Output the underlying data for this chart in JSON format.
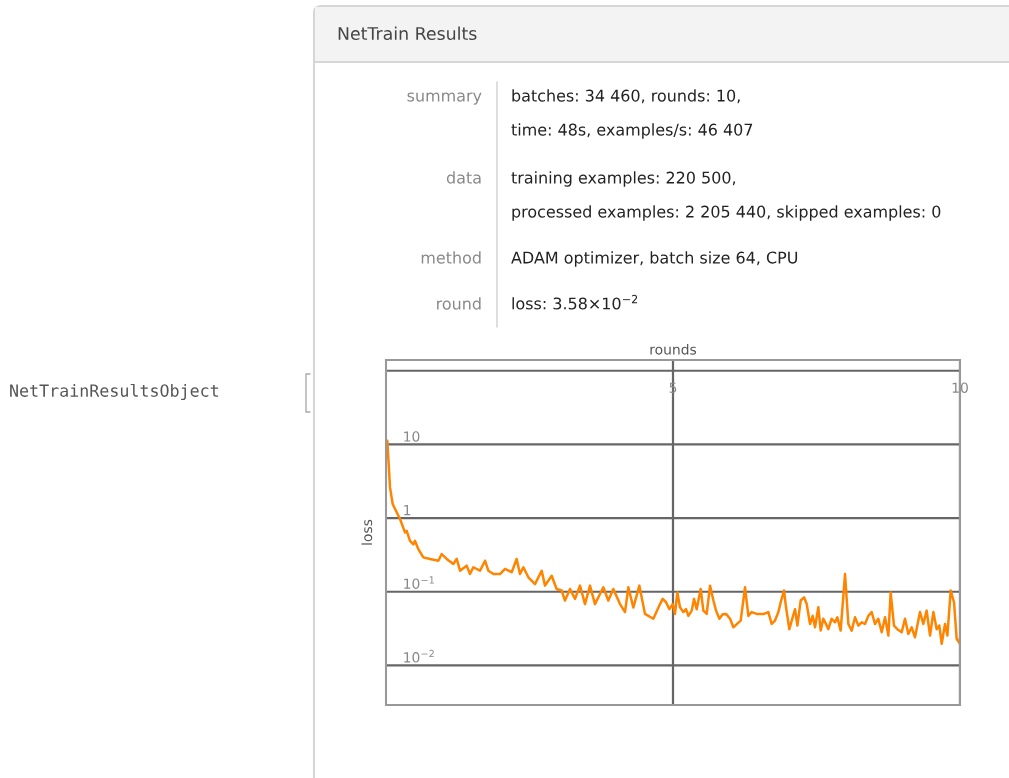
{
  "chart_data": {
    "type": "line",
    "title": "NetTrain Results",
    "xlabel": "rounds",
    "ylabel": "loss",
    "annotations": [
      "NetTrainResultsObject",
      "summary",
      "batches: 34 460, rounds: 10,",
      "time: 48s, examples/s: 46 407",
      "data",
      "training examples: 220 500,",
      "processed examples: 2 205 440, skipped examples: 0",
      "method",
      "ADAM optimizer, batch size 64, CPU",
      "round",
      "loss: 3.58×10$^{−2}$"
    ],
    "xlim": [
      0,
      10
    ],
    "xticks": [
      5,
      10
    ],
    "ylim": [
      0.0029,
      140
    ],
    "log": true,
    "yticks": [
      {
        "value": 100,
        "label": null
      },
      10,
      1,
      {
        "value": 0.1,
        "label": "10$^{−1}$"
      },
      {
        "value": 0.01,
        "label": "10$^{−2}$"
      }
    ],
    "grid": true,
    "series": [
      {
        "color": "#ff8400",
        "x": [
          0.023,
          0.07,
          0.116,
          0.244,
          0.331,
          0.36,
          0.418,
          0.476,
          0.505,
          0.563,
          0.65,
          0.767,
          0.912,
          0.97,
          1.057,
          1.173,
          1.231,
          1.29,
          1.405,
          1.463,
          1.521,
          1.638,
          1.725,
          1.783,
          1.87,
          1.986,
          2.073,
          2.19,
          2.276,
          2.334,
          2.393,
          2.48,
          2.596,
          2.712,
          2.77,
          2.886,
          2.973,
          3.06,
          3.118,
          3.206,
          3.293,
          3.38,
          3.467,
          3.554,
          3.641,
          3.786,
          3.873,
          3.96,
          4.077,
          4.164,
          4.222,
          4.309,
          4.414,
          4.512,
          4.657,
          4.774,
          4.82,
          4.879,
          4.937,
          4.995,
          5.035,
          5.076,
          5.122,
          5.18,
          5.227,
          5.268,
          5.326,
          5.366,
          5.413,
          5.482,
          5.529,
          5.587,
          5.645,
          5.703,
          5.75,
          5.808,
          5.866,
          5.924,
          5.994,
          6.052,
          6.121,
          6.179,
          6.255,
          6.313,
          6.371,
          6.458,
          6.516,
          6.586,
          6.661,
          6.719,
          6.777,
          6.836,
          6.876,
          6.934,
          6.969,
          7.027,
          7.085,
          7.126,
          7.167,
          7.225,
          7.283,
          7.329,
          7.387,
          7.434,
          7.474,
          7.532,
          7.573,
          7.619,
          7.666,
          7.706,
          7.764,
          7.823,
          7.863,
          7.921,
          7.997,
          8.055,
          8.113,
          8.171,
          8.229,
          8.287,
          8.345,
          8.403,
          8.461,
          8.519,
          8.577,
          8.636,
          8.694,
          8.752,
          8.792,
          8.85,
          8.908,
          8.984,
          9.042,
          9.1,
          9.158,
          9.216,
          9.303,
          9.361,
          9.419,
          9.478,
          9.536,
          9.594,
          9.64,
          9.681,
          9.739,
          9.78,
          9.838,
          9.896,
          9.942,
          9.998,
          10.0
        ],
        "values": [
          11.2,
          2.61,
          1.55,
          0.97,
          0.64,
          0.67,
          0.49,
          0.44,
          0.49,
          0.38,
          0.293,
          0.279,
          0.264,
          0.325,
          0.279,
          0.238,
          0.279,
          0.193,
          0.226,
          0.174,
          0.215,
          0.193,
          0.264,
          0.193,
          0.174,
          0.174,
          0.204,
          0.184,
          0.279,
          0.174,
          0.215,
          0.157,
          0.127,
          0.193,
          0.121,
          0.165,
          0.109,
          0.104,
          0.076,
          0.109,
          0.08,
          0.121,
          0.068,
          0.121,
          0.068,
          0.115,
          0.076,
          0.109,
          0.068,
          0.053,
          0.115,
          0.061,
          0.121,
          0.05,
          0.043,
          0.068,
          0.08,
          0.072,
          0.058,
          0.068,
          0.05,
          0.098,
          0.0615,
          0.053,
          0.058,
          0.047,
          0.0554,
          0.08,
          0.058,
          0.109,
          0.0554,
          0.05,
          0.121,
          0.0766,
          0.0554,
          0.043,
          0.0495,
          0.05,
          0.043,
          0.0329,
          0.0369,
          0.0406,
          0.115,
          0.047,
          0.053,
          0.05,
          0.05,
          0.05,
          0.053,
          0.0365,
          0.0406,
          0.053,
          0.072,
          0.104,
          0.0615,
          0.031,
          0.045,
          0.058,
          0.0347,
          0.076,
          0.084,
          0.068,
          0.0365,
          0.047,
          0.0329,
          0.0615,
          0.0297,
          0.043,
          0.0365,
          0.031,
          0.043,
          0.0385,
          0.045,
          0.0297,
          0.174,
          0.0365,
          0.0297,
          0.045,
          0.0347,
          0.0385,
          0.0365,
          0.047,
          0.053,
          0.0365,
          0.043,
          0.0282,
          0.045,
          0.0254,
          0.098,
          0.0347,
          0.031,
          0.0282,
          0.043,
          0.0267,
          0.0329,
          0.0241,
          0.053,
          0.0365,
          0.0554,
          0.0254,
          0.053,
          0.031,
          0.0347,
          0.0196,
          0.0365,
          0.0254,
          0.104,
          0.072,
          0.0229,
          0.0196,
          0.0241
        ]
      }
    ]
  }
}
